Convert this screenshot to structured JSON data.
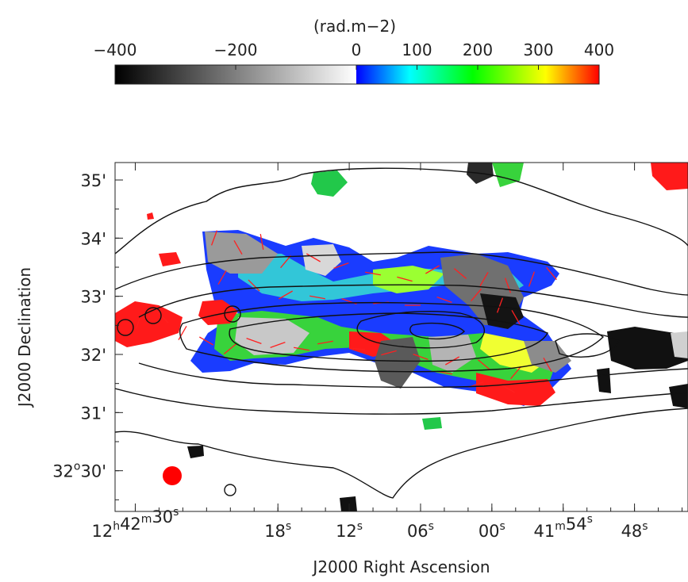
{
  "chart_data": {
    "type": "heatmap",
    "colorbar": {
      "label": "(rad.m−2)",
      "ticks": [
        {
          "value": -400,
          "label": "−400"
        },
        {
          "value": -200,
          "label": "−200"
        },
        {
          "value": 0,
          "label": "0"
        },
        {
          "value": 100,
          "label": "100"
        },
        {
          "value": 200,
          "label": "200"
        },
        {
          "value": 300,
          "label": "300"
        },
        {
          "value": 400,
          "label": "400"
        }
      ],
      "negative_range": [
        -400,
        0
      ],
      "positive_range": [
        0,
        400
      ],
      "negative_colors": [
        "#000000",
        "#ffffff"
      ],
      "positive_colors": [
        "#0000ff",
        "#00ffff",
        "#00ff00",
        "#ffff00",
        "#ff0000"
      ]
    },
    "xlabel": "J2000 Right Ascension",
    "ylabel": "J2000 Declination",
    "x_ticks": [
      {
        "value": 0,
        "h": "12",
        "m": "42",
        "s": "30"
      },
      {
        "value": 12,
        "s": "18"
      },
      {
        "value": 18,
        "s": "12"
      },
      {
        "value": 24,
        "s": "06"
      },
      {
        "value": 30,
        "s": "00"
      },
      {
        "value": 36,
        "m": "41",
        "s": "54"
      },
      {
        "value": 42,
        "s": "48"
      }
    ],
    "y_ticks": [
      {
        "value": 35,
        "label": "35'"
      },
      {
        "value": 34,
        "label": "34'"
      },
      {
        "value": 33,
        "label": "33'"
      },
      {
        "value": 32,
        "label": "32'"
      },
      {
        "value": 31,
        "label": "31'"
      },
      {
        "value": 30,
        "label": "30'",
        "prefix": "32",
        "deg": "o"
      }
    ],
    "beam_color": "#ff0000"
  }
}
